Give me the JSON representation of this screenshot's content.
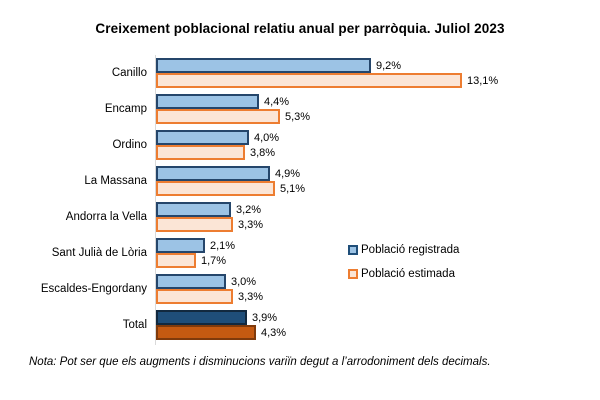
{
  "title": "Creixement poblacional relatiu anual per parròquia. Juliol 2023",
  "footnote": "Nota: Pot ser que els augments i disminucions variïn degut a l’arrodoniment dels decimals.",
  "legend": {
    "items": [
      {
        "label": "Població registrada",
        "series": "registered"
      },
      {
        "label": "Població estimada",
        "series": "estimated"
      }
    ]
  },
  "colors": {
    "registered_fill": "#9CC3E5",
    "registered_border": "#25466B",
    "estimated_fill": "#FBE5D6",
    "estimated_border": "#ED7D31",
    "total_registered_fill": "#1F4E79",
    "total_registered_border": "#12293F",
    "total_estimated_fill": "#C55A11",
    "total_estimated_border": "#7F3A0B",
    "axis_line": "#D9D9D9",
    "text": "#000000"
  },
  "chart_data": {
    "type": "bar",
    "orientation": "horizontal",
    "title": "Creixement poblacional relatiu anual per parròquia. Juliol 2023",
    "categories": [
      "Canillo",
      "Encamp",
      "Ordino",
      "La Massana",
      "Andorra la Vella",
      "Sant Julià de Lòria",
      "Escaldes-Engordany",
      "Total"
    ],
    "series": [
      {
        "name": "Població registrada",
        "values": [
          9.2,
          4.4,
          4.0,
          4.9,
          3.2,
          2.1,
          3.0,
          3.9
        ],
        "labels": [
          "9,2%",
          "4,4%",
          "4,0%",
          "4,9%",
          "3,2%",
          "2,1%",
          "3,0%",
          "3,9%"
        ]
      },
      {
        "name": "Població estimada",
        "values": [
          13.1,
          5.3,
          3.8,
          5.1,
          3.3,
          1.7,
          3.3,
          4.3
        ],
        "labels": [
          "13,1%",
          "5,3%",
          "3,8%",
          "5,1%",
          "3,3%",
          "1,7%",
          "3,3%",
          "4,3%"
        ]
      }
    ],
    "xlim": [
      0,
      13.1
    ],
    "value_label_format": "0,0%",
    "grid": false,
    "legend_position": "center-right",
    "highlight_category": "Total"
  }
}
